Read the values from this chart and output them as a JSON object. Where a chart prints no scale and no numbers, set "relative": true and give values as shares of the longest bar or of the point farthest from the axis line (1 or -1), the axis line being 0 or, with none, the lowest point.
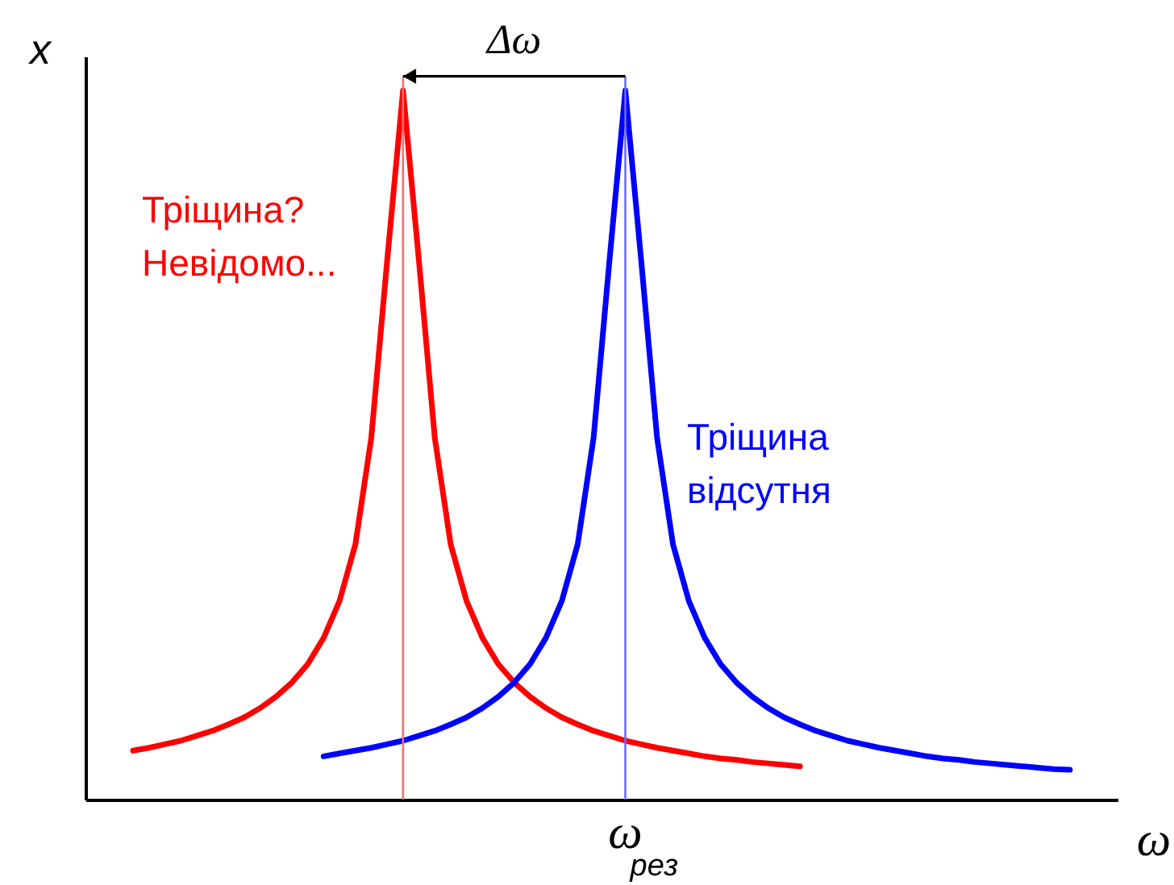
{
  "chart_data": {
    "type": "line",
    "relative": true,
    "xlabel": "ω",
    "ylabel": "x",
    "tick_labels": false,
    "categories": [
      null,
      null,
      null,
      null,
      null,
      null,
      null,
      null,
      null,
      null,
      null,
      null,
      null,
      null,
      null,
      null,
      null,
      null,
      null,
      null,
      null,
      null,
      null,
      null,
      null,
      null,
      null,
      null,
      null,
      null,
      null,
      null,
      null,
      null,
      null,
      null,
      null,
      null,
      null,
      null,
      null,
      null,
      null,
      null,
      null,
      null,
      null,
      null,
      null,
      null,
      null,
      null,
      null,
      null,
      null,
      null,
      null,
      null,
      null,
      null,
      null,
      null,
      null,
      null,
      null,
      null
    ],
    "series": [
      {
        "name": "Тріщина?\nНевідомо...",
        "color": "#ff0000",
        "values": [
          null,
          null,
          null,
          0.069,
          0.073,
          0.078,
          0.083,
          0.09,
          0.097,
          0.106,
          0.116,
          0.129,
          0.145,
          0.165,
          0.191,
          0.228,
          0.28,
          0.36,
          0.51,
          0.76,
          1,
          0.76,
          0.51,
          0.36,
          0.28,
          0.228,
          0.191,
          0.165,
          0.145,
          0.129,
          0.116,
          0.106,
          0.097,
          0.09,
          0.083,
          0.078,
          0.073,
          0.069,
          0.065,
          0.061,
          0.058,
          0.056,
          0.053,
          0.051,
          0.049,
          0.047,
          null,
          null,
          null,
          null,
          null,
          null,
          null,
          null,
          null,
          null,
          null,
          null,
          null,
          null,
          null,
          null,
          null,
          null,
          null,
          null
        ]
      },
      {
        "name": "Тріщина\nвідсутня",
        "color": "#0000ff",
        "values": [
          null,
          null,
          null,
          null,
          null,
          null,
          null,
          null,
          null,
          null,
          null,
          null,
          null,
          null,
          null,
          0.061,
          0.065,
          0.069,
          0.073,
          0.078,
          0.083,
          0.09,
          0.097,
          0.106,
          0.116,
          0.129,
          0.145,
          0.165,
          0.191,
          0.228,
          0.28,
          0.36,
          0.51,
          0.76,
          1,
          0.76,
          0.51,
          0.36,
          0.28,
          0.228,
          0.191,
          0.165,
          0.145,
          0.129,
          0.116,
          0.106,
          0.097,
          0.09,
          0.083,
          0.078,
          0.073,
          0.069,
          0.065,
          0.061,
          0.058,
          0.056,
          0.053,
          0.051,
          0.049,
          0.047,
          0.045,
          0.043,
          0.042,
          null,
          null,
          null
        ]
      }
    ],
    "ref_lines": [
      {
        "axis": "x",
        "color": "#f07070"
      },
      {
        "axis": "x",
        "label": "ω$_{рез}$",
        "color": "#6b6bff"
      }
    ],
    "annotations": [
      "Δω"
    ]
  }
}
